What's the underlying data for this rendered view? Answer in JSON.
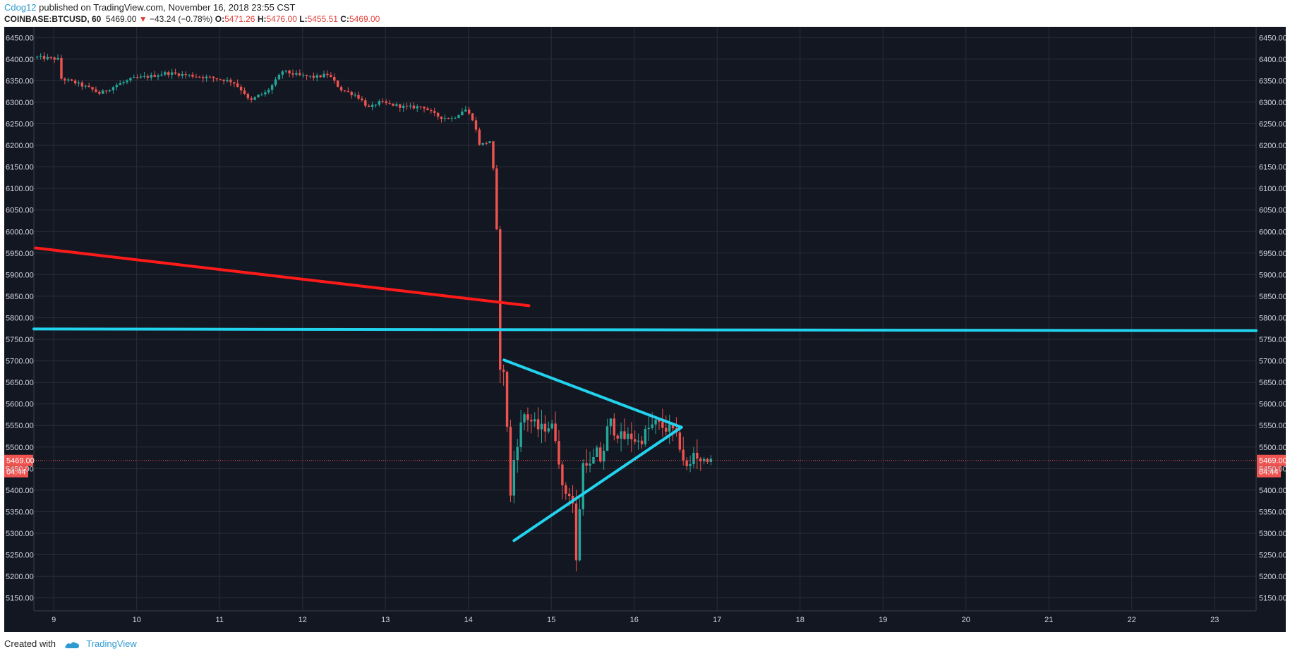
{
  "header": {
    "author": "Cdog12",
    "published_text": " published on TradingView.com, November 16, 2018 23:55 CST",
    "symbol": "COINBASE:BTCUSD, 60",
    "last": "5469.00",
    "change": "−43.24 (−0.78%)",
    "o_label": "O:",
    "o_value": "5471.26",
    "h_label": "H:",
    "h_value": "5476.00",
    "l_label": "L:",
    "l_value": "5455.51",
    "c_label": "C:",
    "c_value": "5469.00"
  },
  "footer": {
    "created_with": "Created with",
    "brand": "TradingView"
  },
  "colors": {
    "background": "#131722",
    "grid": "#2a2e39",
    "up": "#26a69a",
    "down": "#ef5350",
    "cyan_line": "#22d3ee",
    "red_line": "#ff1a1a"
  },
  "chart_data": {
    "type": "candlestick",
    "symbol": "COINBASE:BTCUSD",
    "interval": "60",
    "ylim": [
      5120,
      6475
    ],
    "y_ticks": [
      6450,
      6400,
      6350,
      6300,
      6250,
      6200,
      6150,
      6100,
      6050,
      6000,
      5950,
      5900,
      5850,
      5800,
      5750,
      5700,
      5650,
      5600,
      5550,
      5500,
      5450,
      5400,
      5350,
      5300,
      5250,
      5200,
      5150
    ],
    "y_tick_labels": [
      "6450.00",
      "6400.00",
      "6350.00",
      "6300.00",
      "6250.00",
      "6200.00",
      "6150.00",
      "6100.00",
      "6050.00",
      "6000.00",
      "5950.00",
      "5900.00",
      "5850.00",
      "5800.00",
      "5750.00",
      "5700.00",
      "5650.00",
      "5600.00",
      "5550.00",
      "5500.00",
      "5450.00",
      "5400.00",
      "5350.00",
      "5300.00",
      "5250.00",
      "5200.00",
      "5150.00"
    ],
    "xlim": [
      8.76,
      23.5
    ],
    "x_ticks": [
      9,
      10,
      11,
      12,
      13,
      14,
      15,
      16,
      17,
      18,
      19,
      20,
      21,
      22,
      23
    ],
    "x_tick_labels": [
      "9",
      "10",
      "11",
      "12",
      "13",
      "14",
      "15",
      "16",
      "17",
      "18",
      "19",
      "20",
      "21",
      "22",
      "23"
    ],
    "current_price": 5469.0,
    "current_price_label": "5469.00",
    "countdown_label": "04:44",
    "path": [
      [
        8.8,
        6405
      ],
      [
        9.1,
        6400
      ],
      [
        9.13,
        6355
      ],
      [
        9.3,
        6345
      ],
      [
        9.5,
        6330
      ],
      [
        9.6,
        6320
      ],
      [
        9.8,
        6340
      ],
      [
        10.0,
        6355
      ],
      [
        10.2,
        6360
      ],
      [
        10.4,
        6368
      ],
      [
        10.7,
        6362
      ],
      [
        11.0,
        6355
      ],
      [
        11.2,
        6348
      ],
      [
        11.35,
        6320
      ],
      [
        11.4,
        6300
      ],
      [
        11.5,
        6315
      ],
      [
        11.6,
        6322
      ],
      [
        11.7,
        6345
      ],
      [
        11.8,
        6372
      ],
      [
        12.0,
        6362
      ],
      [
        12.2,
        6358
      ],
      [
        12.35,
        6365
      ],
      [
        12.5,
        6330
      ],
      [
        12.7,
        6315
      ],
      [
        12.85,
        6285
      ],
      [
        12.95,
        6300
      ],
      [
        13.1,
        6295
      ],
      [
        13.3,
        6288
      ],
      [
        13.5,
        6290
      ],
      [
        13.6,
        6275
      ],
      [
        13.7,
        6265
      ],
      [
        13.85,
        6262
      ],
      [
        14.0,
        6285
      ],
      [
        14.1,
        6260
      ],
      [
        14.18,
        6200
      ],
      [
        14.3,
        6210
      ],
      [
        14.35,
        6130
      ],
      [
        14.38,
        6050
      ],
      [
        14.4,
        5760
      ],
      [
        14.42,
        5690
      ],
      [
        14.45,
        5700
      ],
      [
        14.5,
        5600
      ],
      [
        14.53,
        5430
      ],
      [
        14.56,
        5360
      ],
      [
        14.6,
        5500
      ],
      [
        14.65,
        5520
      ],
      [
        14.7,
        5580
      ],
      [
        14.8,
        5560
      ],
      [
        14.9,
        5540
      ],
      [
        15.0,
        5550
      ],
      [
        15.05,
        5545
      ],
      [
        15.1,
        5520
      ],
      [
        15.15,
        5450
      ],
      [
        15.18,
        5390
      ],
      [
        15.25,
        5400
      ],
      [
        15.3,
        5370
      ],
      [
        15.33,
        5220
      ],
      [
        15.36,
        5250
      ],
      [
        15.4,
        5440
      ],
      [
        15.45,
        5480
      ],
      [
        15.5,
        5450
      ],
      [
        15.55,
        5470
      ],
      [
        15.6,
        5490
      ],
      [
        15.65,
        5460
      ],
      [
        15.7,
        5530
      ],
      [
        15.75,
        5560
      ],
      [
        15.8,
        5540
      ],
      [
        15.9,
        5520
      ],
      [
        16.0,
        5525
      ],
      [
        16.1,
        5510
      ],
      [
        16.2,
        5540
      ],
      [
        16.3,
        5555
      ],
      [
        16.4,
        5545
      ],
      [
        16.5,
        5540
      ],
      [
        16.55,
        5520
      ],
      [
        16.6,
        5500
      ],
      [
        16.65,
        5460
      ],
      [
        16.7,
        5440
      ],
      [
        16.75,
        5490
      ],
      [
        16.8,
        5480
      ],
      [
        16.85,
        5470
      ],
      [
        16.95,
        5469
      ]
    ],
    "annotations": [
      {
        "kind": "trendline",
        "color": "red",
        "x": [
          8.78,
          14.73
        ],
        "y": [
          5962,
          5828
        ]
      },
      {
        "kind": "horizontal",
        "color": "cyan",
        "x": [
          8.76,
          23.5
        ],
        "y": [
          5774,
          5770
        ]
      },
      {
        "kind": "trendline",
        "color": "cyan",
        "x": [
          14.43,
          16.57
        ],
        "y": [
          5702,
          5546
        ]
      },
      {
        "kind": "trendline",
        "color": "cyan",
        "x": [
          14.55,
          16.57
        ],
        "y": [
          5283,
          5546
        ]
      }
    ]
  }
}
